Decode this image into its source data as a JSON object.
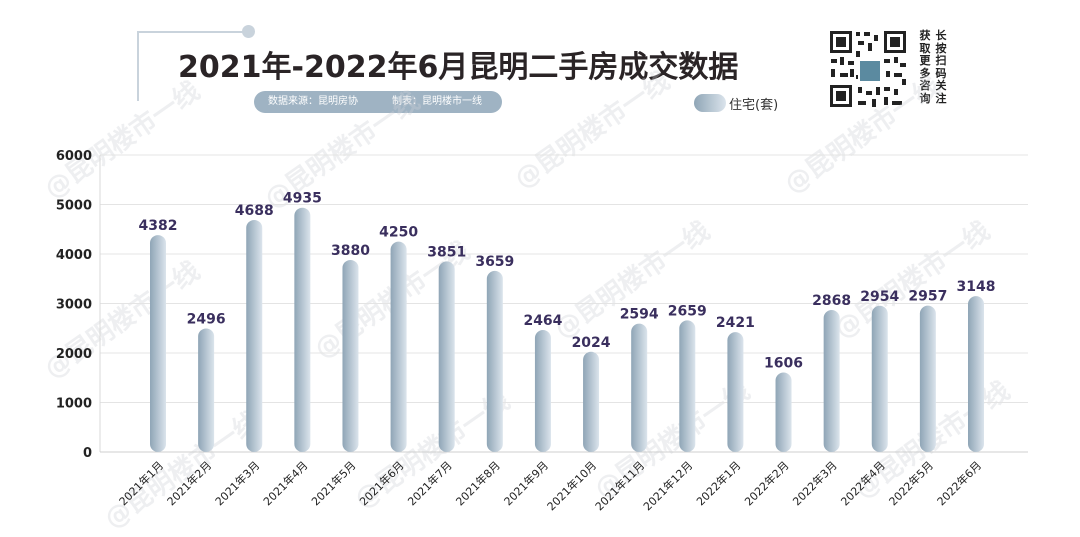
{
  "header": {
    "title": "2021年-2022年6月昆明二手房成交数据",
    "source": "数据来源：昆明房协",
    "maker": "制表：昆明楼市一线"
  },
  "qr": {
    "side_text_1": "长按扫码关注",
    "side_text_2": "获取更多咨询"
  },
  "watermark": "@昆明楼市一线",
  "colors": {
    "bar_dark": "#8fa5b6",
    "bar_light": "#dbe4ec",
    "value_label": "#3a2f5e",
    "grid": "#e4e4e4",
    "title": "#2a2426"
  },
  "chart_data": {
    "type": "bar",
    "title": "2021年-2022年6月昆明二手房成交数据",
    "xlabel": "",
    "ylabel": "",
    "ylim": [
      0,
      6000
    ],
    "yticks": [
      0,
      1000,
      2000,
      3000,
      4000,
      5000,
      6000
    ],
    "grid": true,
    "legend_position": "top-right",
    "categories": [
      "2021年1月",
      "2021年2月",
      "2021年3月",
      "2021年4月",
      "2021年5月",
      "2021年6月",
      "2021年7月",
      "2021年8月",
      "2021年9月",
      "2021年10月",
      "2021年11月",
      "2021年12月",
      "2022年1月",
      "2022年2月",
      "2022年3月",
      "2022年4月",
      "2022年5月",
      "2022年6月"
    ],
    "series": [
      {
        "name": "住宅(套)",
        "values": [
          4382,
          2496,
          4688,
          4935,
          3880,
          4250,
          3851,
          3659,
          2464,
          2024,
          2594,
          2659,
          2421,
          1606,
          2868,
          2954,
          2957,
          3148
        ]
      }
    ]
  }
}
